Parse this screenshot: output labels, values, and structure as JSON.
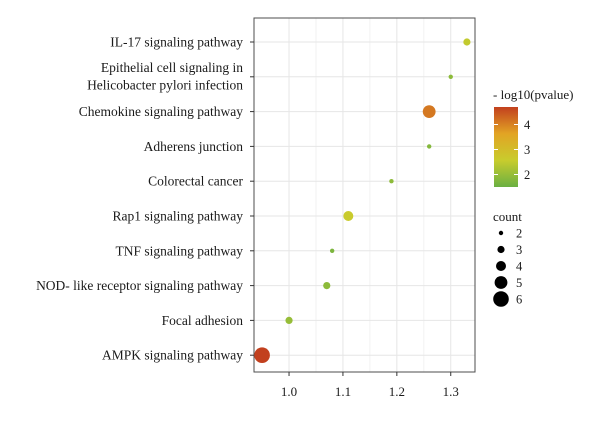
{
  "chart_data": {
    "type": "scatter",
    "categories": [
      "IL-17 signaling pathway",
      [
        "Epithelial cell signaling in",
        "Helicobacter pylori infection"
      ],
      "Chemokine signaling pathway",
      "Adherens junction",
      "Colorectal cancer",
      "Rap1 signaling pathway",
      "TNF signaling pathway",
      "NOD- like receptor signaling pathway",
      "Focal adhesion",
      "AMPK signaling pathway"
    ],
    "x": [
      1.33,
      1.3,
      1.26,
      1.26,
      1.19,
      1.11,
      1.08,
      1.07,
      1.0,
      0.95
    ],
    "count": [
      3,
      2,
      5,
      2,
      2,
      4,
      2,
      3,
      3,
      6
    ],
    "neg_log10_pvalue": [
      2.5,
      1.9,
      4.1,
      1.8,
      1.9,
      2.6,
      1.7,
      1.9,
      2.0,
      4.7
    ],
    "xlim": [
      0.935,
      1.345
    ],
    "xticks": [
      1.0,
      1.1,
      1.2,
      1.3
    ],
    "xtick_labels": [
      "1.0",
      "1.1",
      "1.2",
      "1.3"
    ],
    "grid": true,
    "color_legend": {
      "title": "- log10(pvalue)",
      "ticks": [
        2,
        3,
        4
      ],
      "tick_labels": [
        "2",
        "3",
        "4"
      ],
      "range": [
        1.5,
        4.7
      ],
      "colors": [
        "#6ab042",
        "#c8cc2d",
        "#e2a424",
        "#c2401e"
      ]
    },
    "size_legend": {
      "title": "count",
      "values": [
        2,
        3,
        4,
        5,
        6
      ],
      "labels": [
        "2",
        "3",
        "4",
        "5",
        "6"
      ]
    }
  }
}
